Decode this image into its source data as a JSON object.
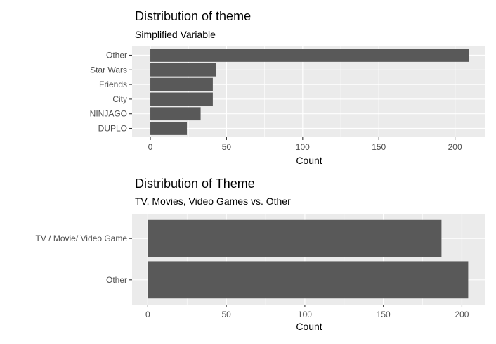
{
  "chart_data": [
    {
      "type": "bar",
      "orientation": "horizontal",
      "title": "Distribution of theme",
      "subtitle": "Simplified Variable",
      "xlabel": "Count",
      "ylabel": "",
      "categories": [
        "Other",
        "Star Wars",
        "Friends",
        "City",
        "NINJAGO",
        "DUPLO"
      ],
      "values": [
        209,
        43,
        41,
        41,
        33,
        24
      ],
      "xlim": [
        -12,
        220
      ],
      "xticks": [
        0,
        50,
        100,
        150,
        200
      ],
      "grid": true,
      "bar_color": "#595959",
      "panel_color": "#ebebeb"
    },
    {
      "type": "bar",
      "orientation": "horizontal",
      "title": "Distribution of Theme",
      "subtitle": "TV, Movies, Video Games vs. Other",
      "xlabel": "Count",
      "ylabel": "",
      "categories": [
        "TV / Movie/ Video Game",
        "Other"
      ],
      "values": [
        187,
        204
      ],
      "xlim": [
        -10,
        215
      ],
      "xticks": [
        0,
        50,
        100,
        150,
        200
      ],
      "grid": true,
      "bar_color": "#595959",
      "panel_color": "#ebebeb"
    }
  ]
}
